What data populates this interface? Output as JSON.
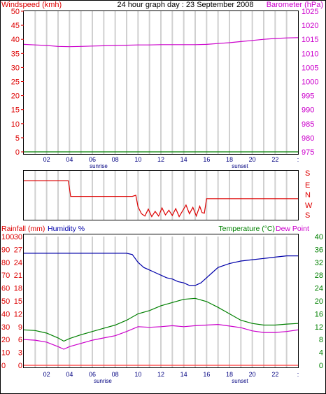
{
  "chart_data": [
    {
      "type": "line",
      "title": "24 hour graph day : 23 September 2008",
      "left_axis_label": "Windspeed (kmh)",
      "right_axis_label": "Barometer (hPa)",
      "left_ticks": [
        "0",
        "5",
        "10",
        "15",
        "20",
        "25",
        "30",
        "35",
        "40",
        "45",
        "50"
      ],
      "right_ticks": [
        "975",
        "980",
        "985",
        "990",
        "995",
        "1000",
        "1005",
        "1010",
        "1015",
        "1020",
        "1025"
      ],
      "x_ticks": [
        "02",
        "04",
        "06",
        "08",
        "10",
        "12",
        "14",
        "16",
        "18",
        "20",
        "22",
        ":"
      ],
      "markers": {
        "sunrise": "sunrise",
        "sunset": "sunset"
      },
      "ylim_left": [
        0,
        50
      ],
      "ylim_right": [
        975,
        1025
      ],
      "series": [
        {
          "color": "#cc00cc",
          "axis": "right",
          "x": [
            0,
            1,
            2,
            3,
            4,
            5,
            6,
            7,
            8,
            9,
            10,
            11,
            12,
            13,
            14,
            15,
            16,
            17,
            18,
            19,
            20,
            21,
            22,
            23,
            24
          ],
          "values": [
            1013.2,
            1013.0,
            1012.8,
            1012.5,
            1012.4,
            1012.5,
            1012.6,
            1012.7,
            1012.8,
            1012.9,
            1013.0,
            1013.0,
            1013.1,
            1013.1,
            1013.1,
            1013.1,
            1013.2,
            1013.5,
            1013.8,
            1014.2,
            1014.6,
            1015.0,
            1015.3,
            1015.5,
            1015.6
          ]
        },
        {
          "color": "#008000",
          "axis": "left",
          "x": [
            0,
            24
          ],
          "values": [
            0,
            0
          ]
        }
      ]
    },
    {
      "type": "line",
      "y_labels": [
        "S",
        "E",
        "N",
        "W",
        "S"
      ],
      "series": [
        {
          "color": "#dd0000",
          "x": [
            0,
            3.9,
            4.1,
            9.5,
            9.8,
            10.0,
            10.3,
            10.6,
            10.9,
            11.2,
            11.5,
            11.8,
            12.1,
            12.4,
            12.7,
            13.0,
            13.3,
            13.6,
            13.9,
            14.2,
            14.5,
            14.8,
            15.1,
            15.4,
            15.6,
            15.8,
            16.0,
            20,
            24
          ],
          "values": [
            6.5,
            6.5,
            3.8,
            3.8,
            4.0,
            2.0,
            0.8,
            0.4,
            1.6,
            0.3,
            1.2,
            0.4,
            1.8,
            0.6,
            1.4,
            0.5,
            1.7,
            0.3,
            1.3,
            2.3,
            0.8,
            1.9,
            0.4,
            2.1,
            1.0,
            0.9,
            3.4,
            3.4,
            3.4
          ]
        }
      ]
    },
    {
      "type": "line",
      "left_axis_label": "Rainfall (mm)",
      "left_axis_label2": "Humidity %",
      "right_axis_label": "Temperature (°C)",
      "right_axis_label2": "Dew Point",
      "ticks_humidity": [
        "0",
        "10",
        "20",
        "30",
        "40",
        "50",
        "60",
        "70",
        "80",
        "90",
        "100"
      ],
      "ticks_rain": [
        "0",
        "3",
        "6",
        "9",
        "12",
        "15",
        "18",
        "21",
        "24",
        "27",
        "30"
      ],
      "ticks_temp": [
        "0",
        "4",
        "8",
        "12",
        "16",
        "20",
        "24",
        "28",
        "32",
        "36",
        "40"
      ],
      "x_ticks": [
        "02",
        "04",
        "06",
        "08",
        "10",
        "12",
        "14",
        "16",
        "18",
        "20",
        "22",
        ":"
      ],
      "markers": {
        "sunrise": "sunrise",
        "sunset": "sunset"
      },
      "series": [
        {
          "color": "#0000aa",
          "axis": "humidity",
          "x": [
            0,
            2,
            4,
            6,
            8,
            9,
            9.5,
            10,
            10.5,
            11,
            11.5,
            12,
            12.5,
            13,
            13.5,
            14,
            14.5,
            15,
            15.5,
            16,
            16.5,
            17,
            18,
            19,
            20,
            21,
            22,
            23,
            24
          ],
          "values": [
            87,
            87,
            87,
            87,
            87,
            87,
            86,
            80,
            76,
            74,
            72,
            70,
            68,
            67,
            65,
            64,
            62,
            62,
            64,
            68,
            72,
            76,
            79,
            81,
            82,
            83,
            84,
            85,
            85
          ]
        },
        {
          "color": "#008000",
          "axis": "temp",
          "x": [
            0,
            1,
            2,
            3,
            3.5,
            4,
            5,
            6,
            7,
            8,
            9,
            10,
            11,
            12,
            13,
            14,
            15,
            16,
            17,
            18,
            19,
            20,
            21,
            22,
            23,
            24
          ],
          "values": [
            11.0,
            10.8,
            10.0,
            8.5,
            7.5,
            8.3,
            9.5,
            10.5,
            11.5,
            12.5,
            14,
            16,
            17,
            18.5,
            19.5,
            20.5,
            20.8,
            19.8,
            18,
            16,
            14,
            13,
            12.5,
            12.5,
            12.8,
            13
          ]
        },
        {
          "color": "#cc00cc",
          "axis": "temp",
          "x": [
            0,
            1,
            2,
            3,
            3.5,
            4,
            5,
            6,
            7,
            8,
            9,
            10,
            11,
            12,
            13,
            14,
            15,
            16,
            17,
            18,
            19,
            20,
            21,
            22,
            23,
            24
          ],
          "values": [
            8.0,
            7.8,
            7.2,
            5.8,
            5.0,
            5.8,
            6.8,
            7.8,
            8.5,
            9.2,
            10.5,
            12.0,
            11.8,
            12.0,
            12.3,
            12.0,
            12.3,
            12.5,
            12.7,
            12.2,
            11.7,
            10.7,
            10.2,
            10.2,
            10.5,
            11
          ]
        },
        {
          "color": "#ff3333",
          "axis": "rain",
          "x": [
            0,
            24
          ],
          "values": [
            0,
            0
          ]
        }
      ]
    }
  ]
}
